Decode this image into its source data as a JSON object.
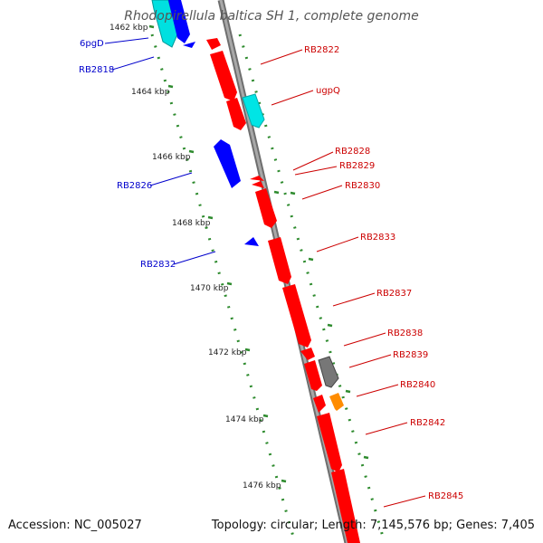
{
  "title": "Rhodopirellula baltica SH 1, complete genome",
  "accession_label": "Accession: NC_005027",
  "summary_label": "Topology: circular; Length: 7,145,576 bp; Genes: 7,405",
  "colors": {
    "backbone": "#888888",
    "forward_gene": "#ff0000",
    "reverse_gene": "#0000ff",
    "cyan_gene": "#00e5e5",
    "grey_gene": "#777777",
    "orange_gene": "#ff8c00",
    "tick_dots": "#228b22",
    "right_label": "#cc0000",
    "left_label": "#0000cc"
  },
  "scale_labels": [
    "1462 kbp",
    "1464 kbp",
    "1466 kbp",
    "1468 kbp",
    "1470 kbp",
    "1472 kbp",
    "1474 kbp",
    "1476 kbp"
  ],
  "right_labels": [
    "RB2822",
    "ugpQ",
    "RB2828",
    "RB2829",
    "RB2830",
    "RB2833",
    "RB2837",
    "RB2838",
    "RB2839",
    "RB2840",
    "RB2842",
    "RB2845"
  ],
  "left_labels": [
    "6pgD",
    "RB2818",
    "RB2826",
    "RB2832"
  ]
}
